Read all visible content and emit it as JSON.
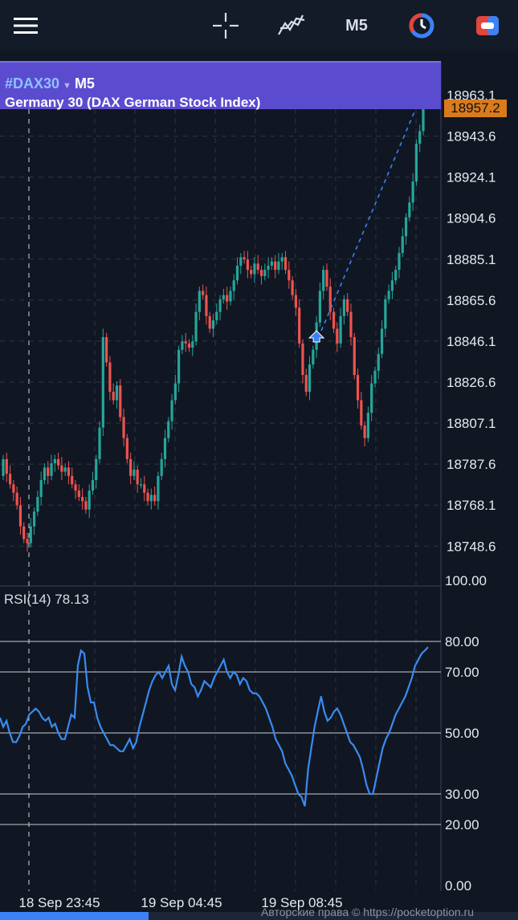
{
  "toolbar": {
    "menu_icon": "hamburger-menu-icon",
    "crosshair_icon": "crosshair-icon",
    "indicators_icon": "indicators-icon",
    "timeframe": "M5",
    "timer_icon": "timer-icon",
    "trades_icon": "trades-icon",
    "accent_red": "#e0463c",
    "accent_blue": "#3b82f6"
  },
  "header": {
    "symbol": "#DAX30",
    "timeframe": "M5",
    "name": "Germany 30 (DAX German Stock Index)"
  },
  "current_price": "18957.2",
  "price_axis": [
    "18963.1",
    "18943.6",
    "18924.1",
    "18904.6",
    "18885.1",
    "18865.6",
    "18846.1",
    "18826.6",
    "18807.1",
    "18787.6",
    "18768.1",
    "18748.6"
  ],
  "rsi": {
    "label": "RSI(14) 78.13",
    "axis": [
      "100.00",
      "80.00",
      "70.00",
      "50.00",
      "30.00",
      "20.00",
      "0.00"
    ]
  },
  "time_axis": [
    "18 Sep 23:45",
    "19 Sep 04:45",
    "19 Sep 08:45"
  ],
  "copyright": "Авторские права © https://pocketoption.ru",
  "chart_data": [
    {
      "type": "candlestick",
      "title": "",
      "y_ticks": [
        18963.1,
        18943.6,
        18924.1,
        18904.6,
        18885.1,
        18865.6,
        18846.1,
        18826.6,
        18807.1,
        18787.6,
        18768.1,
        18748.6
      ],
      "ylim": [
        18735,
        18975
      ],
      "x_ticks": [
        "18 Sep 23:45",
        "19 Sep 04:45",
        "19 Sep 08:45"
      ],
      "last_price": 18957.2,
      "series": [
        {
          "closes": [
            18790,
            18783,
            18778,
            18774,
            18768,
            18758,
            18752,
            18750,
            18758,
            18765,
            18772,
            18780,
            18786,
            18782,
            18788,
            18790,
            18787,
            18784,
            18786,
            18782,
            18778,
            18775,
            18772,
            18770,
            18766,
            18775,
            18780,
            18790,
            18805,
            18848,
            18836,
            18822,
            18818,
            18825,
            18810,
            18800,
            18790,
            18782,
            18785,
            18778,
            18778,
            18774,
            18770,
            18773,
            18770,
            18782,
            18790,
            18800,
            18808,
            18818,
            18826,
            18842,
            18846,
            18845,
            18843,
            18846,
            18860,
            18870,
            18868,
            18858,
            18852,
            18856,
            18860,
            18866,
            18868,
            18865,
            18870,
            18875,
            18882,
            18886,
            18885,
            18880,
            18878,
            18883,
            18880,
            18877,
            18880,
            18882,
            18884,
            18880,
            18884,
            18886,
            18880,
            18875,
            18868,
            18862,
            18845,
            18830,
            18822,
            18835,
            18842,
            18855,
            18870,
            18880,
            18872,
            18860,
            18852,
            18845,
            18858,
            18866,
            18860,
            18848,
            18830,
            18818,
            18806,
            18800,
            18812,
            18826,
            18832,
            18840,
            18852,
            18866,
            18870,
            18875,
            18880,
            18888,
            18896,
            18905,
            18912,
            18922,
            18940,
            18946,
            18957.2
          ],
          "buy_marker": 18848,
          "sell_marker": 18965
        }
      ]
    },
    {
      "type": "line",
      "title": "RSI(14)",
      "ylim": [
        0,
        100
      ],
      "y_ticks": [
        100,
        80,
        70,
        50,
        30,
        20,
        0
      ],
      "last_value": 78.13,
      "series": [
        {
          "name": "RSI(14)",
          "values": [
            55,
            52,
            54,
            50,
            47,
            47,
            49,
            52,
            53,
            56,
            57,
            58,
            57,
            55,
            54,
            55,
            52,
            53,
            50,
            48,
            48,
            52,
            56,
            55,
            72,
            77,
            76,
            65,
            60,
            60,
            55,
            52,
            50,
            48,
            46,
            46,
            45,
            44,
            44,
            46,
            48,
            45,
            47,
            52,
            56,
            60,
            64,
            67,
            69,
            70,
            68,
            70,
            72,
            66,
            64,
            69,
            75,
            72,
            70,
            66,
            65,
            62,
            64,
            67,
            66,
            65,
            68,
            70,
            72,
            74,
            70,
            68,
            70,
            69,
            66,
            68,
            67,
            64,
            63,
            63,
            62,
            60,
            58,
            55,
            52,
            48,
            46,
            44,
            40,
            38,
            36,
            33,
            30,
            29,
            26,
            38,
            45,
            52,
            57,
            62,
            57,
            54,
            55,
            57,
            58,
            56,
            53,
            50,
            47,
            46,
            44,
            42,
            38,
            33,
            30,
            30,
            35,
            40,
            45,
            48,
            50,
            53,
            56,
            58,
            60,
            62,
            65,
            68,
            72,
            74,
            76,
            77,
            78.13
          ]
        }
      ]
    }
  ]
}
